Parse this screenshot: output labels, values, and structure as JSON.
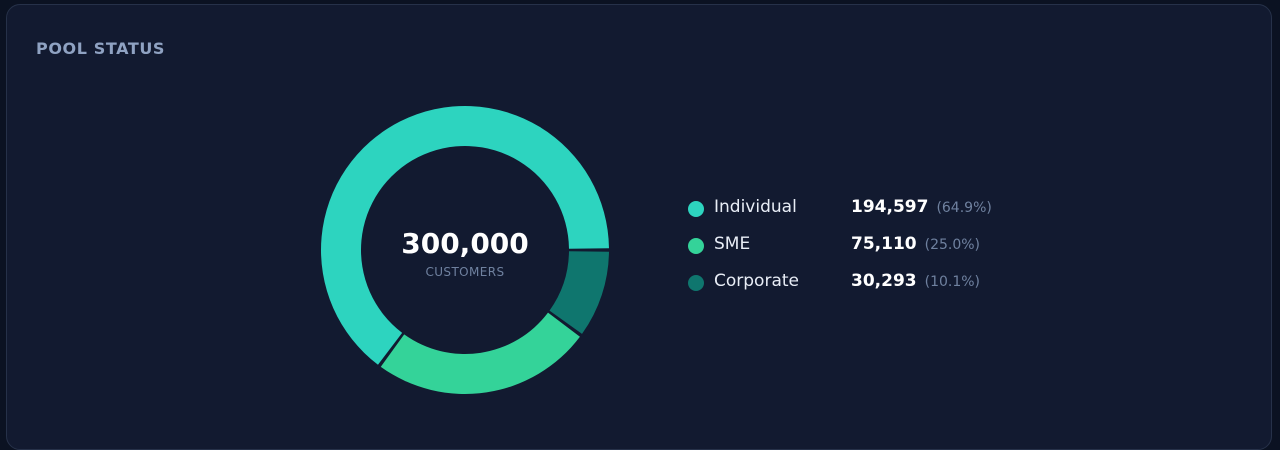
{
  "panel": {
    "title": "POOL STATUS"
  },
  "chart_data": {
    "type": "pie",
    "categories": [
      "Individual",
      "SME",
      "Corporate"
    ],
    "values": [
      194597,
      75110,
      30293
    ],
    "percent_labels": [
      "(64.9%)",
      "(25.0%)",
      "(10.1%)"
    ],
    "value_labels": [
      "194,597",
      "75,110",
      "30,293"
    ],
    "colors": [
      "#2dd4bf",
      "#34d399",
      "#0f766e"
    ],
    "center_total": "300,000",
    "center_label": "CUSTOMERS",
    "legend_position": "right"
  }
}
